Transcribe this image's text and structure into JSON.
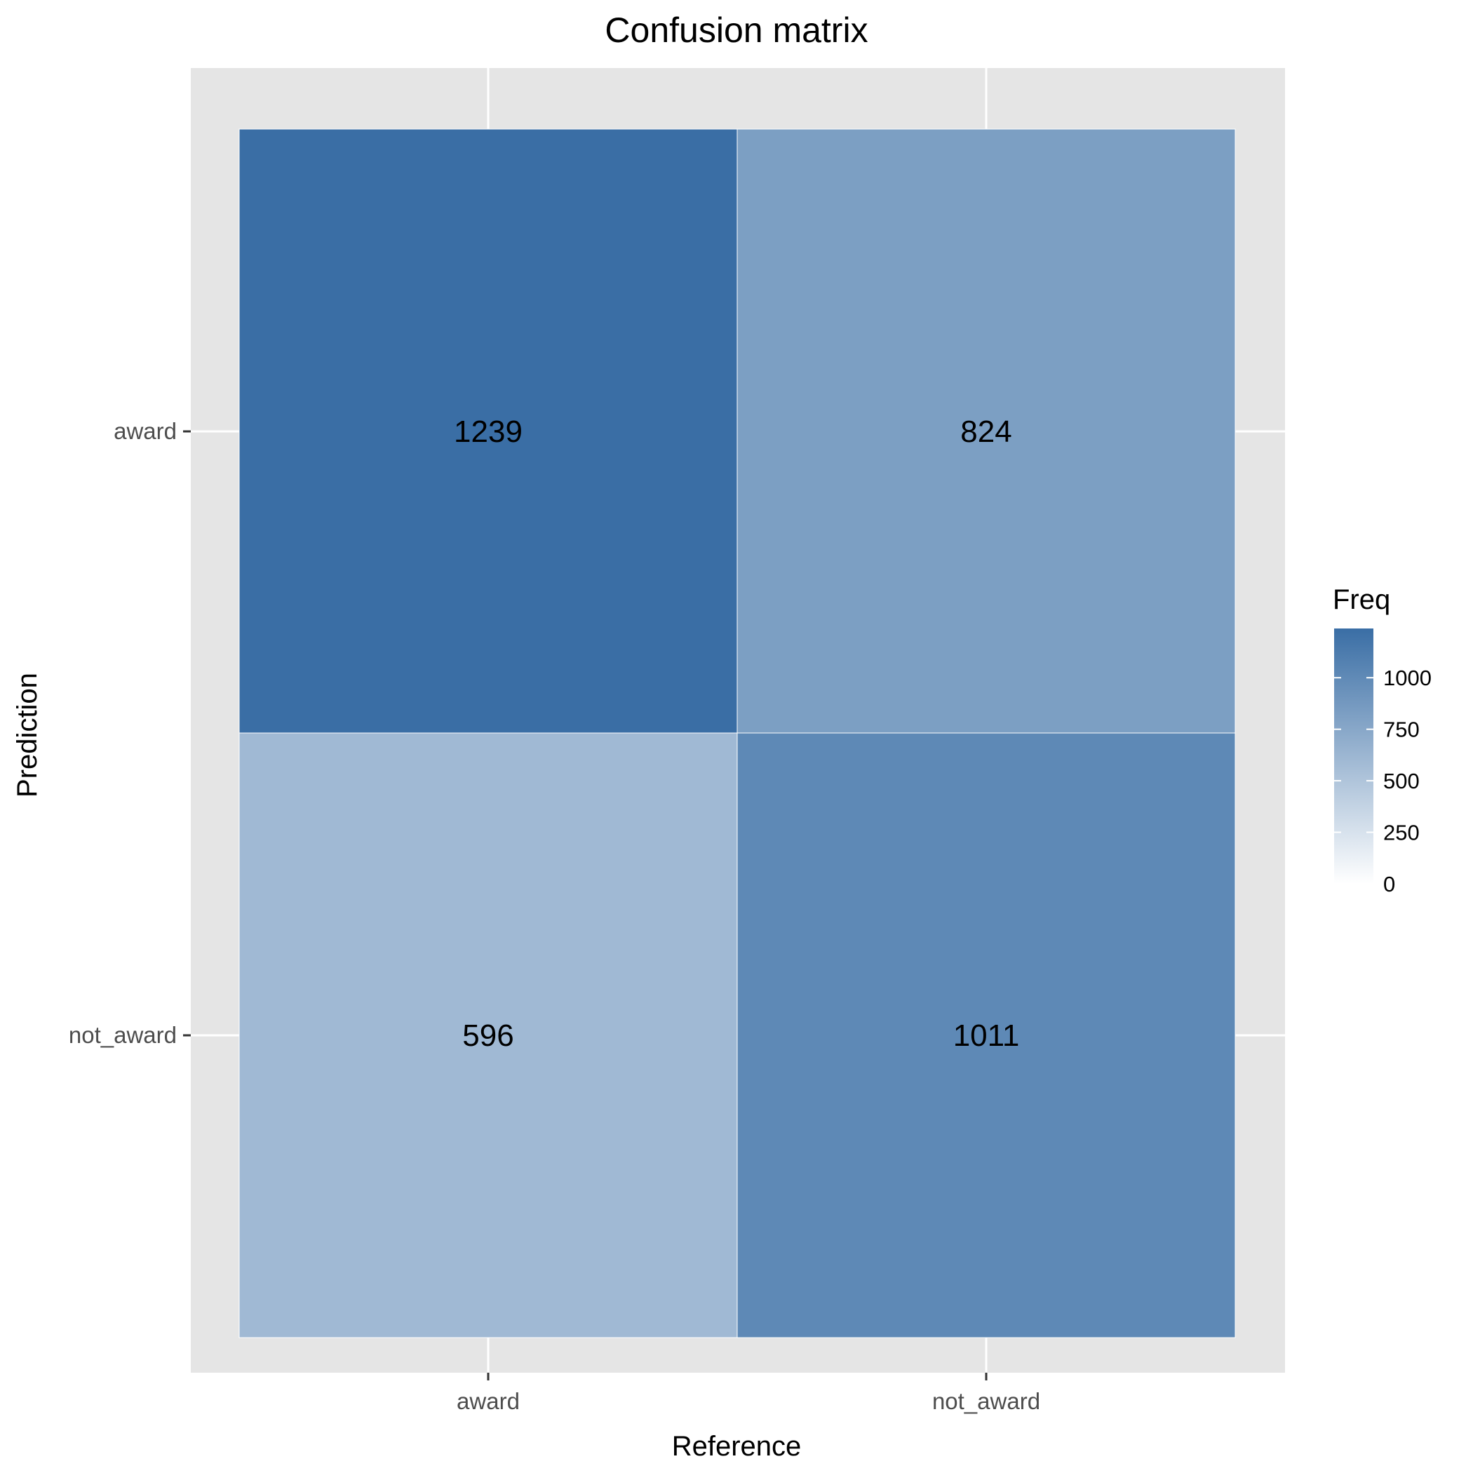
{
  "chart_data": {
    "type": "heatmap",
    "title": "Confusion matrix",
    "xlabel": "Reference",
    "ylabel": "Prediction",
    "x_categories": [
      "award",
      "not_award"
    ],
    "y_categories": [
      "award",
      "not_award"
    ],
    "cells": [
      {
        "reference": "award",
        "prediction": "award",
        "freq": 1239
      },
      {
        "reference": "not_award",
        "prediction": "award",
        "freq": 824
      },
      {
        "reference": "award",
        "prediction": "not_award",
        "freq": 596
      },
      {
        "reference": "not_award",
        "prediction": "not_award",
        "freq": 1011
      }
    ],
    "legend": {
      "title": "Freq",
      "position": "right",
      "ticks": [
        0,
        250,
        500,
        750,
        1000
      ],
      "tick_labels": [
        "0",
        "250",
        "500",
        "750",
        "1000"
      ],
      "range": [
        0,
        1239
      ],
      "color_low": "#ffffff",
      "color_high": "#3a6ea5"
    },
    "panel_background": "#e5e5e5",
    "grid": true
  }
}
